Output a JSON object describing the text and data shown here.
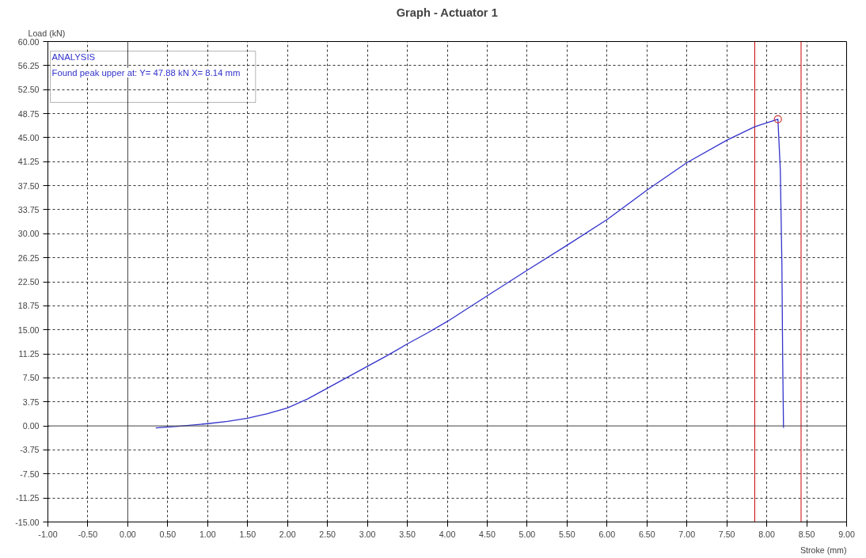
{
  "chart_data": {
    "type": "line",
    "title": "Graph - Actuator 1",
    "xlabel": "Stroke (mm)",
    "ylabel": "Load (kN)",
    "annotations": [
      "ANALYSIS",
      "Found peak upper at: Y= 47.88 kN X= 8.14 mm"
    ],
    "series": [
      {
        "color": "#3333cc",
        "x": [
          0.35,
          0.6,
          1.0,
          1.25,
          1.5,
          1.75,
          2.0,
          2.25,
          2.5,
          2.75,
          3.0,
          3.25,
          3.5,
          3.75,
          4.0,
          4.5,
          5.0,
          5.5,
          6.0,
          6.5,
          7.0,
          7.5,
          7.85,
          8.14,
          8.17,
          8.19,
          8.2,
          8.21
        ],
        "values": [
          -0.3,
          -0.1,
          0.35,
          0.7,
          1.2,
          1.9,
          2.8,
          4.2,
          5.9,
          7.6,
          9.3,
          11.0,
          12.8,
          14.5,
          16.3,
          20.3,
          24.3,
          28.2,
          32.2,
          36.8,
          41.1,
          44.6,
          46.7,
          47.88,
          40.0,
          25.0,
          10.0,
          -0.3
        ]
      },
      {
        "type": "scatter",
        "marker": "circle",
        "color": "#cc3333",
        "x": [
          8.14
        ],
        "values": [
          47.88
        ]
      }
    ],
    "xlim": [
      -1,
      9
    ],
    "ylim": [
      -15,
      60
    ],
    "xticks": [
      {
        "value": -1,
        "label": "-1.00"
      },
      {
        "value": -0.5,
        "label": "-0.50"
      },
      {
        "value": 0,
        "label": "0.00"
      },
      {
        "value": 0.5,
        "label": "0.50"
      },
      {
        "value": 1,
        "label": "1.00"
      },
      {
        "value": 1.5,
        "label": "1.50"
      },
      {
        "value": 2,
        "label": "2.00"
      },
      {
        "value": 2.5,
        "label": "2.50"
      },
      {
        "value": 3,
        "label": "3.00"
      },
      {
        "value": 3.5,
        "label": "3.50"
      },
      {
        "value": 4,
        "label": "4.00"
      },
      {
        "value": 4.5,
        "label": "4.50"
      },
      {
        "value": 5,
        "label": "5.00"
      },
      {
        "value": 5.5,
        "label": "5.50"
      },
      {
        "value": 6,
        "label": "6.00"
      },
      {
        "value": 6.5,
        "label": "6.50"
      },
      {
        "value": 7,
        "label": "7.00"
      },
      {
        "value": 7.5,
        "label": "7.50"
      },
      {
        "value": 8,
        "label": "8.00"
      },
      {
        "value": 8.5,
        "label": "8.50"
      },
      {
        "value": 9,
        "label": "9.00"
      }
    ],
    "yticks": [
      {
        "value": -15,
        "label": "-15.00"
      },
      {
        "value": -11.25,
        "label": "-11.25"
      },
      {
        "value": -7.5,
        "label": "-7.50"
      },
      {
        "value": -3.75,
        "label": "-3.75"
      },
      {
        "value": 0,
        "label": "0.00"
      },
      {
        "value": 3.75,
        "label": "3.75"
      },
      {
        "value": 7.5,
        "label": "7.50"
      },
      {
        "value": 11.25,
        "label": "11.25"
      },
      {
        "value": 15,
        "label": "15.00"
      },
      {
        "value": 18.75,
        "label": "18.75"
      },
      {
        "value": 22.5,
        "label": "22.50"
      },
      {
        "value": 26.25,
        "label": "26.25"
      },
      {
        "value": 30,
        "label": "30.00"
      },
      {
        "value": 33.75,
        "label": "33.75"
      },
      {
        "value": 37.5,
        "label": "37.50"
      },
      {
        "value": 41.25,
        "label": "41.25"
      },
      {
        "value": 45,
        "label": "45.00"
      },
      {
        "value": 48.75,
        "label": "48.75"
      },
      {
        "value": 52.5,
        "label": "52.50"
      },
      {
        "value": 56.25,
        "label": "56.25"
      },
      {
        "value": 60,
        "label": "60.00"
      }
    ],
    "ref_lines": [
      {
        "axis": "x",
        "value": 7.85,
        "color": "#cc0000"
      },
      {
        "axis": "x",
        "value": 8.43,
        "color": "#cc0000"
      }
    ],
    "grid": true,
    "line_style": "solid"
  }
}
